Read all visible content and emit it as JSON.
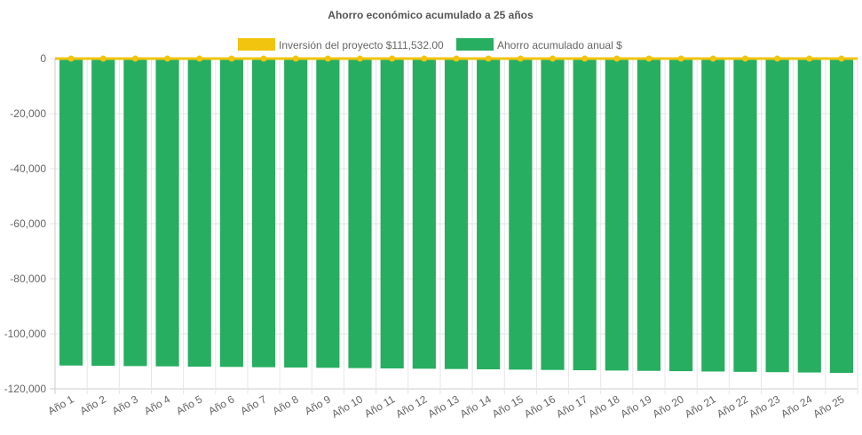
{
  "chart_data": {
    "type": "bar",
    "title": "Ahorro económico acumulado a 25 años",
    "categories": [
      "Año 1",
      "Año 2",
      "Año 3",
      "Año 4",
      "Año 5",
      "Año 6",
      "Año 7",
      "Año 8",
      "Año 9",
      "Año 10",
      "Año 11",
      "Año 12",
      "Año 13",
      "Año 14",
      "Año 15",
      "Año 16",
      "Año 17",
      "Año 18",
      "Año 19",
      "Año 20",
      "Año 21",
      "Año 22",
      "Año 23",
      "Año 24",
      "Año 25"
    ],
    "series": [
      {
        "name": "Inversión del proyecto $111,532.00",
        "type": "line",
        "color": "#f1c40f",
        "values": [
          0,
          0,
          0,
          0,
          0,
          0,
          0,
          0,
          0,
          0,
          0,
          0,
          0,
          0,
          0,
          0,
          0,
          0,
          0,
          0,
          0,
          0,
          0,
          0,
          0
        ]
      },
      {
        "name": "Ahorro acumulado anual $",
        "type": "bar",
        "color": "#27ae60",
        "values": [
          -111532,
          -111630,
          -111730,
          -111830,
          -111930,
          -112030,
          -112140,
          -112250,
          -112360,
          -112470,
          -112580,
          -112690,
          -112800,
          -112910,
          -113020,
          -113130,
          -113240,
          -113350,
          -113460,
          -113580,
          -113700,
          -113820,
          -113940,
          -114060,
          -114200
        ]
      }
    ],
    "yticks": [
      0,
      -20000,
      -40000,
      -60000,
      -80000,
      -100000,
      -120000
    ],
    "ytick_labels": [
      "0",
      "-20,000",
      "-40,000",
      "-60,000",
      "-80,000",
      "-100,000",
      "-120,000"
    ],
    "ylim": [
      -120000,
      0
    ],
    "grid": true,
    "legend": "top"
  }
}
